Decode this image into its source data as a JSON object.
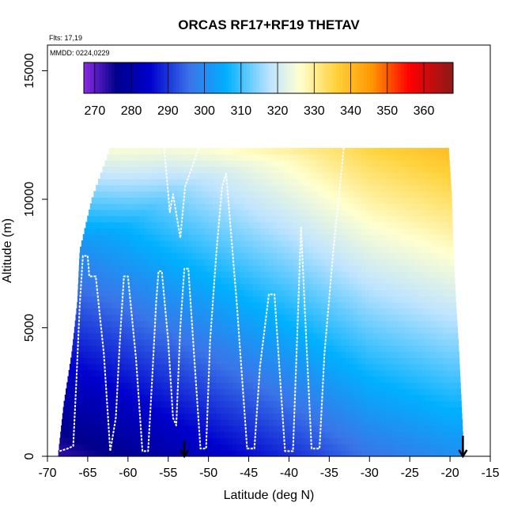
{
  "chart_data": {
    "type": "heatmap",
    "title": "ORCAS RF17+RF19 THETAV",
    "annotations": {
      "flights": "Flts: 17,19",
      "dates": "MMDD: 0224,0229"
    },
    "xlabel": "Latitude (deg N)",
    "ylabel": "Altitude (m)",
    "xlim": [
      -70,
      -15
    ],
    "ylim": [
      0,
      16000
    ],
    "x_ticks": [
      -70,
      -65,
      -60,
      -55,
      -50,
      -45,
      -40,
      -35,
      -30,
      -25,
      -20,
      -15
    ],
    "y_ticks": [
      0,
      5000,
      10000,
      15000
    ],
    "x_tick_labels": [
      "-70",
      "-65",
      "-60",
      "-55",
      "-50",
      "-45",
      "-40",
      "-35",
      "-30",
      "-25",
      "-20",
      "-15"
    ],
    "y_tick_labels": [
      "0",
      "5000",
      "10000",
      "15000"
    ],
    "colorbar": {
      "placement": "top-inside",
      "range": [
        267,
        368
      ],
      "ticks": [
        270,
        280,
        290,
        300,
        310,
        320,
        330,
        340,
        350,
        360
      ],
      "tick_labels": [
        "270",
        "280",
        "290",
        "300",
        "310",
        "320",
        "330",
        "340",
        "350",
        "360"
      ],
      "colors": [
        "#8a2be2",
        "#00008b",
        "#0000cd",
        "#3a75e8",
        "#00b0ff",
        "#bfe4ff",
        "#ffffd0",
        "#ffd23a",
        "#ff9500",
        "#ff0000",
        "#8b1a1a"
      ],
      "color_stops": [
        267,
        276,
        285,
        296,
        306,
        318,
        326,
        336,
        346,
        356,
        368
      ]
    },
    "data_extent": {
      "lat_min_by_altitude": [
        [
          0,
          -68.7
        ],
        [
          2000,
          -68.0
        ],
        [
          4000,
          -67.0
        ],
        [
          6000,
          -66.3
        ],
        [
          8000,
          -66.0
        ],
        [
          10000,
          -64.5
        ],
        [
          12000,
          -62.2
        ]
      ],
      "lat_max_by_altitude": [
        [
          0,
          -18.3
        ],
        [
          2000,
          -18.6
        ],
        [
          4000,
          -18.9
        ],
        [
          6000,
          -19.3
        ],
        [
          8000,
          -19.6
        ],
        [
          10000,
          -19.8
        ],
        [
          12000,
          -20.2
        ]
      ],
      "altitude_top": 12000
    },
    "field_model": {
      "surface_theta_at_lat": [
        [
          -68,
          273
        ],
        [
          -60,
          277
        ],
        [
          -50,
          283
        ],
        [
          -40,
          289
        ],
        [
          -30,
          296
        ],
        [
          -20,
          300
        ]
      ],
      "lapse_low_K_per_km": 3.3,
      "lapse_high_K_per_km": 6.3,
      "tropopause_m_at_lat": [
        [
          -68,
          8000
        ],
        [
          -60,
          9000
        ],
        [
          -55,
          10200
        ],
        [
          -50,
          10900
        ],
        [
          -40,
          11600
        ],
        [
          -20,
          12500
        ]
      ]
    },
    "flight_track": {
      "color": "#ffffff",
      "points": [
        [
          -68.5,
          200
        ],
        [
          -67.5,
          300
        ],
        [
          -66.8,
          400
        ],
        [
          -66.4,
          3000
        ],
        [
          -66.0,
          5800
        ],
        [
          -65.6,
          7800
        ],
        [
          -65.0,
          7800
        ],
        [
          -64.8,
          7000
        ],
        [
          -64.0,
          7000
        ],
        [
          -63.0,
          4000
        ],
        [
          -62.2,
          200
        ],
        [
          -61.5,
          1500
        ],
        [
          -61.0,
          4500
        ],
        [
          -60.5,
          7000
        ],
        [
          -60.0,
          7000
        ],
        [
          -59.0,
          3800
        ],
        [
          -58.2,
          200
        ],
        [
          -57.5,
          200
        ],
        [
          -57.0,
          3000
        ],
        [
          -56.5,
          6000
        ],
        [
          -56.2,
          7200
        ],
        [
          -55.8,
          7200
        ],
        [
          -55.0,
          4500
        ],
        [
          -54.4,
          1500
        ],
        [
          -54.0,
          1200
        ],
        [
          -53.5,
          5000
        ],
        [
          -53.0,
          7300
        ],
        [
          -52.5,
          7300
        ],
        [
          -51.8,
          4000
        ],
        [
          -51.0,
          300
        ],
        [
          -50.3,
          300
        ],
        [
          -49.8,
          4500
        ],
        [
          -49.0,
          8000
        ],
        [
          -48.3,
          10500
        ],
        [
          -47.8,
          11000
        ],
        [
          -46.5,
          6000
        ],
        [
          -45.2,
          300
        ],
        [
          -44.3,
          300
        ],
        [
          -43.6,
          3500
        ],
        [
          -42.5,
          6300
        ],
        [
          -41.8,
          6300
        ],
        [
          -41.2,
          3500
        ],
        [
          -40.5,
          200
        ],
        [
          -39.5,
          200
        ],
        [
          -39.0,
          4500
        ],
        [
          -38.5,
          8900
        ],
        [
          -38.0,
          5500
        ],
        [
          -37.2,
          300
        ],
        [
          -36.2,
          300
        ],
        [
          -35.6,
          4000
        ],
        [
          -34.5,
          8000
        ],
        [
          -33.2,
          12000
        ]
      ]
    },
    "top_transit": {
      "color": "#ffffff",
      "points": [
        [
          -55.5,
          12000
        ],
        [
          -54.8,
          9500
        ],
        [
          -54.4,
          10200
        ],
        [
          -53.5,
          8500
        ],
        [
          -52.9,
          10500
        ],
        [
          -51.2,
          12000
        ]
      ]
    },
    "arrows": [
      {
        "lat": -53.0,
        "from_alt": 600,
        "to_alt": 0,
        "color": "#000000"
      },
      {
        "lat": -18.4,
        "from_alt": 800,
        "to_alt": 0,
        "color": "#000000"
      }
    ]
  }
}
